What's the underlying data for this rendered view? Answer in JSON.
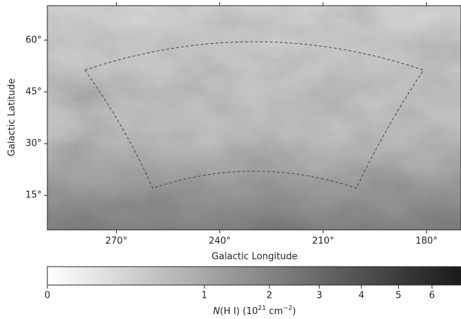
{
  "chart_data": {
    "type": "image",
    "x_label": "Galactic Longitude",
    "y_label": "Galactic Latitude",
    "xlim": [
      290,
      170
    ],
    "ylim": [
      5,
      70
    ],
    "xticks": [
      {
        "value": 270,
        "label": "270°"
      },
      {
        "value": 240,
        "label": "240°"
      },
      {
        "value": 210,
        "label": "210°"
      },
      {
        "value": 180,
        "label": "180°"
      }
    ],
    "yticks": [
      {
        "value": 15,
        "label": "15°"
      },
      {
        "value": 30,
        "label": "30°"
      },
      {
        "value": 45,
        "label": "45°"
      },
      {
        "value": 60,
        "label": "60°"
      }
    ],
    "colorbar": {
      "label_parts": [
        "N",
        "(H I) (10",
        "21",
        " cm",
        "−2",
        ")"
      ],
      "clim": [
        0,
        6.94
      ],
      "stretch": "sqrt",
      "colors": [
        "#ffffff",
        "#1a1a1a"
      ],
      "ticks": [
        0,
        1,
        2,
        3,
        4,
        5,
        6
      ]
    }
  }
}
